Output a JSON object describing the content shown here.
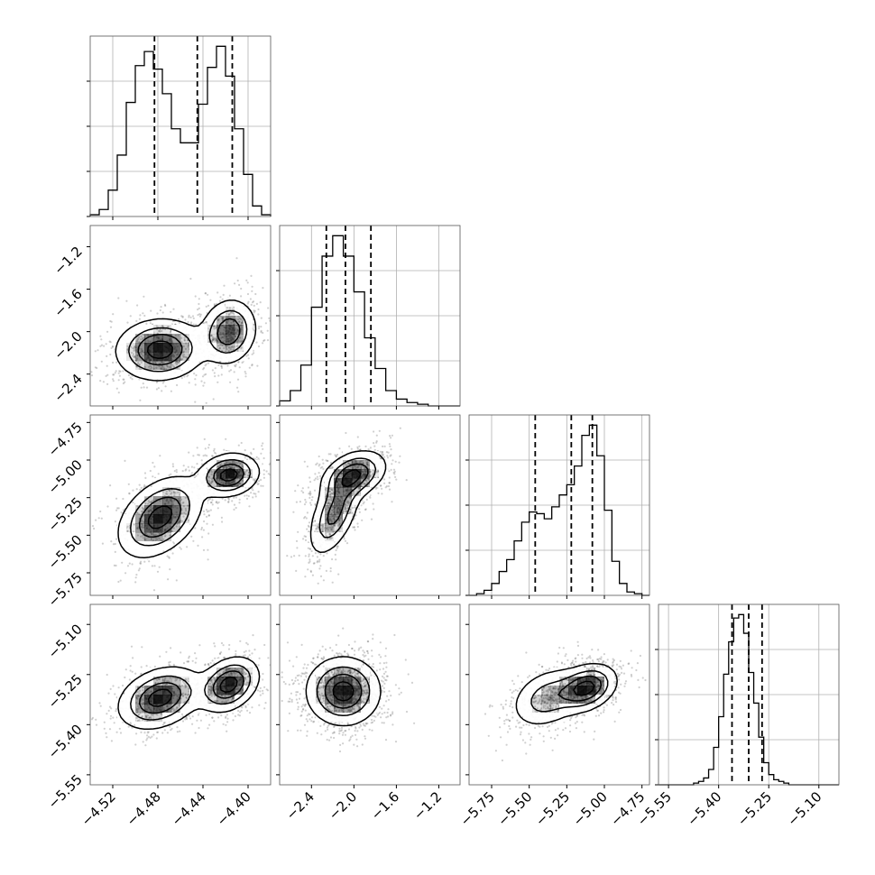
{
  "chart_data": {
    "type": "corner",
    "title": "",
    "colors": {
      "line": "#000000",
      "frame": "#555555",
      "grid": "#b0b0b0",
      "density": "#000000",
      "points": "#555555"
    },
    "grid": true,
    "parameters": [
      {
        "name": "",
        "range": [
          -4.54,
          -4.38
        ],
        "ticks": [
          -4.52,
          -4.48,
          -4.44,
          -4.4
        ],
        "tick_labels": [
          "−4.52",
          "−4.48",
          "−4.44",
          "−4.40"
        ]
      },
      {
        "name": "",
        "range": [
          -2.7,
          -1.0
        ],
        "ticks": [
          -2.4,
          -2.0,
          -1.6,
          -1.2
        ],
        "tick_labels": [
          "−2.4",
          "−2.0",
          "−1.6",
          "−1.2"
        ]
      },
      {
        "name": "",
        "range": [
          -5.9,
          -4.7
        ],
        "ticks": [
          -5.75,
          -5.5,
          -5.25,
          -5.0,
          -4.75
        ],
        "tick_labels": [
          "−5.75",
          "−5.50",
          "−5.25",
          "−5.00",
          "−4.75"
        ]
      },
      {
        "name": "",
        "range": [
          -5.58,
          -5.04
        ],
        "ticks": [
          -5.55,
          -5.4,
          -5.25,
          -5.1
        ],
        "tick_labels": [
          "−5.55",
          "−5.40",
          "−5.25",
          "−5.10"
        ]
      }
    ],
    "histograms": [
      {
        "param": 0,
        "bin_edges": [
          -4.54,
          -4.532,
          -4.524,
          -4.516,
          -4.508,
          -4.5,
          -4.492,
          -4.484,
          -4.476,
          -4.468,
          -4.46,
          -4.452,
          -4.444,
          -4.436,
          -4.428,
          -4.42,
          -4.412,
          -4.404,
          -4.396,
          -4.388,
          -4.38
        ],
        "counts": [
          1,
          4,
          15,
          35,
          65,
          86,
          94,
          84,
          70,
          50,
          42,
          42,
          64,
          85,
          97,
          80,
          50,
          24,
          6,
          1
        ],
        "quantiles": [
          -4.483,
          -4.445,
          -4.414
        ]
      },
      {
        "param": 1,
        "bin_edges": [
          -2.7,
          -2.6,
          -2.5,
          -2.4,
          -2.3,
          -2.2,
          -2.1,
          -2.0,
          -1.9,
          -1.8,
          -1.7,
          -1.6,
          -1.5,
          -1.4,
          -1.3,
          -1.2,
          -1.1,
          -1.0
        ],
        "counts": [
          3,
          9,
          24,
          58,
          88,
          100,
          88,
          67,
          40,
          22,
          9,
          4,
          2,
          1,
          0,
          0,
          0
        ],
        "quantiles": [
          -2.26,
          -2.08,
          -1.84
        ]
      },
      {
        "param": 2,
        "bin_edges": [
          -5.9,
          -5.85,
          -5.8,
          -5.75,
          -5.7,
          -5.65,
          -5.6,
          -5.55,
          -5.5,
          -5.45,
          -5.4,
          -5.35,
          -5.3,
          -5.25,
          -5.2,
          -5.15,
          -5.1,
          -5.05,
          -5.0,
          -4.95,
          -4.9,
          -4.85,
          -4.8,
          -4.75,
          -4.7
        ],
        "counts": [
          0,
          1,
          3,
          7,
          14,
          21,
          32,
          43,
          49,
          48,
          45,
          52,
          59,
          65,
          76,
          94,
          100,
          82,
          50,
          20,
          7,
          2,
          1,
          0
        ],
        "quantiles": [
          -5.46,
          -5.22,
          -5.08
        ]
      },
      {
        "param": 3,
        "bin_edges": [
          -5.58,
          -5.565,
          -5.55,
          -5.535,
          -5.52,
          -5.505,
          -5.49,
          -5.475,
          -5.46,
          -5.445,
          -5.43,
          -5.415,
          -5.4,
          -5.385,
          -5.37,
          -5.355,
          -5.34,
          -5.325,
          -5.31,
          -5.295,
          -5.28,
          -5.265,
          -5.25,
          -5.235,
          -5.22,
          -5.205,
          -5.19,
          -5.175,
          -5.16,
          -5.145,
          -5.13,
          -5.115,
          -5.1,
          -5.085,
          -5.07,
          -5.055,
          -5.04
        ],
        "counts": [
          0,
          0,
          0,
          0,
          0,
          0,
          0,
          1,
          2,
          4,
          9,
          22,
          40,
          65,
          84,
          98,
          100,
          89,
          66,
          48,
          28,
          13,
          6,
          3,
          2,
          1,
          0,
          0,
          0,
          0,
          0,
          0,
          0,
          0,
          0,
          0
        ],
        "quantiles": [
          -5.36,
          -5.31,
          -5.27
        ]
      }
    ],
    "pairs": [
      {
        "x": 0,
        "y": 1,
        "components": [
          {
            "cx": -4.478,
            "cy": -2.17,
            "sx": 0.019,
            "sy": 0.14,
            "rho": 0.05,
            "w": 0.55
          },
          {
            "cx": -4.417,
            "cy": -2.0,
            "sx": 0.012,
            "sy": 0.15,
            "rho": 0.1,
            "w": 0.45
          }
        ]
      },
      {
        "x": 0,
        "y": 2,
        "components": [
          {
            "cx": -4.478,
            "cy": -5.38,
            "sx": 0.018,
            "sy": 0.13,
            "rho": 0.4,
            "w": 0.5
          },
          {
            "cx": -4.417,
            "cy": -5.1,
            "sx": 0.013,
            "sy": 0.07,
            "rho": 0.15,
            "w": 0.5
          }
        ]
      },
      {
        "x": 1,
        "y": 2,
        "components": [
          {
            "cx": -2.18,
            "cy": -5.35,
            "sx": 0.12,
            "sy": 0.14,
            "rho": 0.55,
            "w": 0.45
          },
          {
            "cx": -2.0,
            "cy": -5.1,
            "sx": 0.15,
            "sy": 0.08,
            "rho": 0.35,
            "w": 0.55
          }
        ]
      },
      {
        "x": 0,
        "y": 3,
        "components": [
          {
            "cx": -4.478,
            "cy": -5.32,
            "sx": 0.018,
            "sy": 0.045,
            "rho": 0.3,
            "w": 0.5
          },
          {
            "cx": -4.417,
            "cy": -5.28,
            "sx": 0.013,
            "sy": 0.04,
            "rho": 0.3,
            "w": 0.5
          }
        ]
      },
      {
        "x": 1,
        "y": 3,
        "components": [
          {
            "cx": -2.1,
            "cy": -5.3,
            "sx": 0.17,
            "sy": 0.05,
            "rho": 0.0,
            "w": 1.0
          }
        ]
      },
      {
        "x": 2,
        "y": 3,
        "components": [
          {
            "cx": -5.12,
            "cy": -5.29,
            "sx": 0.1,
            "sy": 0.035,
            "rho": 0.3,
            "w": 0.65
          },
          {
            "cx": -5.38,
            "cy": -5.32,
            "sx": 0.12,
            "sy": 0.045,
            "rho": 0.3,
            "w": 0.35
          }
        ]
      }
    ]
  }
}
